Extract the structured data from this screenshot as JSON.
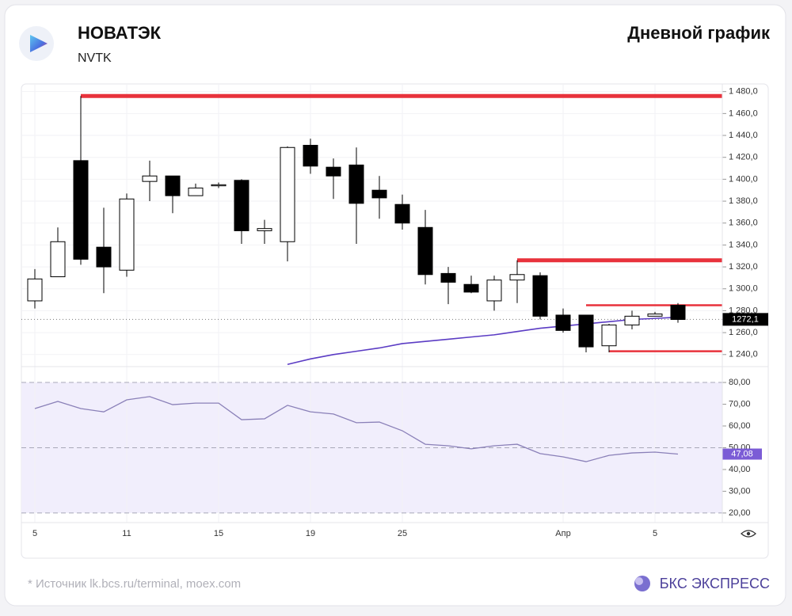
{
  "header": {
    "title": "НОВАТЭК",
    "ticker": "NVTK",
    "chart_label": "Дневной график"
  },
  "footer": {
    "source": "* Источник lk.bcs.ru/terminal, moex.com",
    "brand": "БКС ЭКСПРЕСС"
  },
  "chart_data": {
    "type": "candlestick",
    "categories": [
      "5",
      null,
      null,
      null,
      "11",
      null,
      null,
      null,
      "15",
      null,
      null,
      null,
      "19",
      null,
      null,
      null,
      "25",
      null,
      null,
      null,
      null,
      null,
      null,
      "Апр",
      null,
      null,
      null,
      "5",
      null
    ],
    "open": [
      1289,
      1311,
      1417,
      1338,
      1317,
      1398,
      1403,
      1385,
      1394,
      1399,
      1353,
      1343,
      1431,
      1411,
      1413,
      1390,
      1377,
      1356,
      1314,
      1304,
      1289,
      1308,
      1312,
      1276,
      1276,
      1248,
      1267,
      1275,
      1285
    ],
    "high": [
      1318,
      1356,
      1476,
      1374,
      1387,
      1417,
      1403,
      1396,
      1397,
      1400,
      1363,
      1430,
      1437,
      1419,
      1429,
      1403,
      1386,
      1372,
      1320,
      1312,
      1312,
      1326,
      1315,
      1282,
      1276,
      1268,
      1280,
      1279,
      1287
    ],
    "low": [
      1282,
      1311,
      1322,
      1296,
      1311,
      1380,
      1369,
      1385,
      1392,
      1341,
      1341,
      1325,
      1405,
      1382,
      1341,
      1364,
      1354,
      1304,
      1286,
      1296,
      1280,
      1287,
      1272,
      1260,
      1242,
      1242,
      1263,
      1275,
      1269
    ],
    "close": [
      1309,
      1343,
      1327,
      1320,
      1382,
      1403,
      1385,
      1392,
      1395,
      1353,
      1355,
      1429,
      1412,
      1403,
      1378,
      1383,
      1360,
      1313,
      1306,
      1297,
      1308,
      1313,
      1275,
      1262,
      1247,
      1267,
      1275,
      1277,
      1272
    ],
    "up_color": "#ffffff",
    "down_color": "#000000",
    "ylim": [
      1229,
      1487
    ],
    "yticks": [
      {
        "value": 1240,
        "label": "1 240,0"
      },
      {
        "value": 1260,
        "label": "1 260,0"
      },
      {
        "value": 1280,
        "label": "1 280,0"
      },
      {
        "value": 1300,
        "label": "1 300,0"
      },
      {
        "value": 1320,
        "label": "1 320,0"
      },
      {
        "value": 1340,
        "label": "1 340,0"
      },
      {
        "value": 1360,
        "label": "1 360,0"
      },
      {
        "value": 1380,
        "label": "1 380,0"
      },
      {
        "value": 1400,
        "label": "1 400,0"
      },
      {
        "value": 1420,
        "label": "1 420,0"
      },
      {
        "value": 1440,
        "label": "1 440,0"
      },
      {
        "value": 1460,
        "label": "1 460,0"
      },
      {
        "value": 1480,
        "label": "1 480,0"
      }
    ],
    "last_price": {
      "value": 1272.1,
      "label": "1272,1"
    },
    "levels": [
      {
        "value": 1476,
        "start": 2,
        "style": "thick"
      },
      {
        "value": 1326,
        "start": 21,
        "style": "thick"
      },
      {
        "value": 1285,
        "start": 24,
        "style": "thin"
      },
      {
        "value": 1243,
        "start": 25,
        "style": "thin"
      }
    ],
    "level_color": "#e8323c",
    "moving_average": {
      "color": "#5b3cc4",
      "values": [
        null,
        null,
        null,
        null,
        null,
        null,
        null,
        null,
        null,
        null,
        null,
        1231,
        1236,
        1240,
        1243,
        1246,
        1250,
        1252,
        1254,
        1256,
        1258,
        1261,
        1264,
        1266,
        1268,
        1270,
        1272,
        1273,
        1274
      ]
    },
    "rsi": {
      "color": "#8a80b8",
      "values": [
        68,
        71.3,
        68,
        66.5,
        72,
        73.5,
        69.8,
        70.5,
        70.5,
        62.9,
        63.3,
        69.5,
        66.5,
        65.5,
        61.5,
        61.8,
        57.8,
        51.6,
        50.9,
        49.5,
        50.9,
        51.6,
        47.3,
        45.8,
        43.6,
        46.5,
        47.6,
        48,
        47.08
      ],
      "ylim": [
        15.6,
        87.3
      ],
      "yticks": [
        {
          "value": 20,
          "label": "20,00"
        },
        {
          "value": 30,
          "label": "30,00"
        },
        {
          "value": 40,
          "label": "40,00"
        },
        {
          "value": 50,
          "label": "50,00"
        },
        {
          "value": 60,
          "label": "60,00"
        },
        {
          "value": 70,
          "label": "70,00"
        },
        {
          "value": 80,
          "label": "80,00"
        }
      ],
      "band": [
        20,
        80
      ],
      "dashed_levels": [
        80,
        50,
        20
      ],
      "last": {
        "value": 47.08,
        "label": "47,08"
      },
      "last_color": "#7b5cd6"
    }
  }
}
